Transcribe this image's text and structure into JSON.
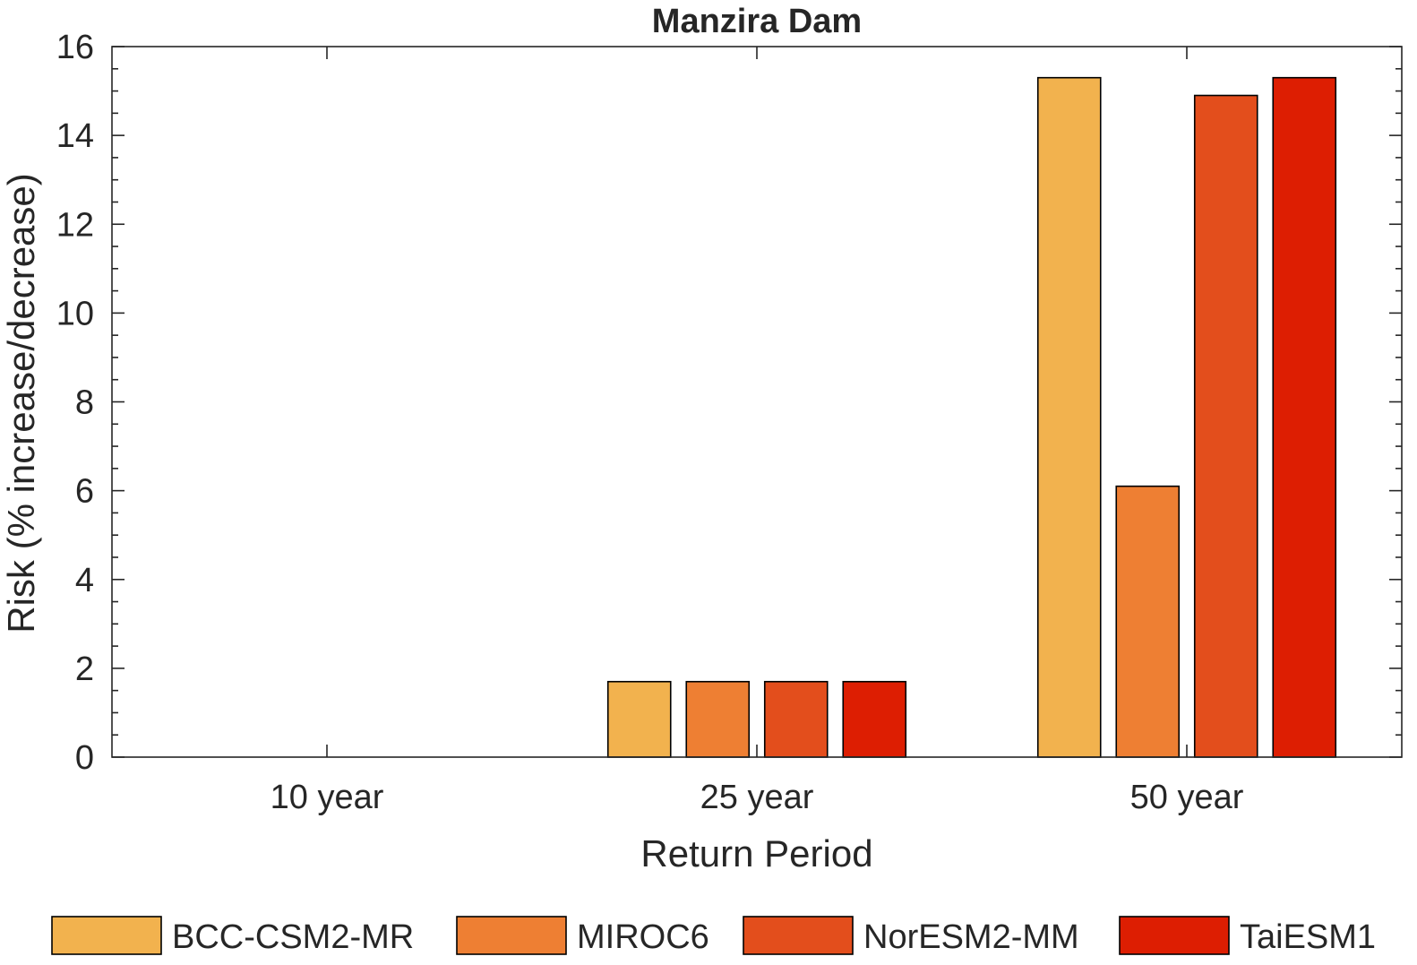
{
  "chart_data": {
    "type": "bar",
    "title": "Manzira Dam",
    "xlabel": "Return Period",
    "ylabel": "Risk (% increase/decrease)",
    "categories": [
      "10 year",
      "25 year",
      "50 year"
    ],
    "ylim": [
      0,
      16
    ],
    "yticks": [
      "0",
      "2",
      "4",
      "6",
      "8",
      "10",
      "12",
      "14",
      "16"
    ],
    "grid": false,
    "legend_position": "bottom",
    "series": [
      {
        "name": "BCC-CSM2-MR",
        "color": "#F2B24E",
        "values": [
          0,
          1.7,
          15.3
        ]
      },
      {
        "name": "MIROC6",
        "color": "#EE7F33",
        "values": [
          0,
          1.7,
          6.1
        ]
      },
      {
        "name": "NorESM2-MM",
        "color": "#E34E1C",
        "values": [
          0,
          1.7,
          14.9
        ]
      },
      {
        "name": "TaiESM1",
        "color": "#DD1E02",
        "values": [
          0,
          1.7,
          15.3
        ]
      }
    ]
  }
}
